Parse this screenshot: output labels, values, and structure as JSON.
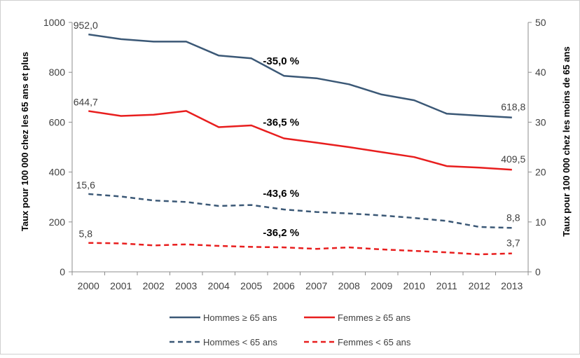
{
  "chart_data": {
    "type": "line",
    "x": [
      "2000",
      "2001",
      "2002",
      "2003",
      "2004",
      "2005",
      "2006",
      "2007",
      "2008",
      "2009",
      "2010",
      "2011",
      "2012",
      "2013"
    ],
    "ylabel": "Taux pour 100 000 chez les 65 ans et plus",
    "ylabel_right": "Taux pour 100 000 chez les moins de 65 ans",
    "ylim": [
      0,
      1000
    ],
    "ylim_right": [
      0,
      50
    ],
    "yticks": [
      "0",
      "200",
      "400",
      "600",
      "800",
      "1000"
    ],
    "yticks_right": [
      "0",
      "10",
      "20",
      "30",
      "40",
      "50"
    ],
    "grid": false,
    "legend_position": "bottom",
    "series": [
      {
        "name": "Hommes ≥ 65 ans",
        "axis": "left",
        "color": "#3b5876",
        "dash": "solid",
        "values": [
          952.0,
          933,
          923,
          923,
          867,
          856,
          786,
          776,
          752,
          711,
          688,
          634,
          626,
          618.8
        ],
        "start_label": "952,0",
        "end_label": "618,8",
        "change_label": "-35,0 %"
      },
      {
        "name": "Femmes ≥ 65 ans",
        "axis": "left",
        "color": "#e81e1e",
        "dash": "solid",
        "values": [
          644.7,
          625,
          630,
          645,
          580,
          587,
          535,
          518,
          500,
          480,
          460,
          424,
          418,
          409.5
        ],
        "start_label": "644,7",
        "end_label": "409,5",
        "change_label": "-36,5 %"
      },
      {
        "name": "Hommes < 65 ans",
        "axis": "right",
        "color": "#3b5876",
        "dash": "dashed",
        "values": [
          15.6,
          15.1,
          14.3,
          14.0,
          13.2,
          13.4,
          12.5,
          12.0,
          11.7,
          11.3,
          10.8,
          10.2,
          9.0,
          8.8
        ],
        "start_label": "15,6",
        "end_label": "8,8",
        "change_label": "-43,6 %"
      },
      {
        "name": "Femmes < 65 ans",
        "axis": "right",
        "color": "#e81e1e",
        "dash": "dashed",
        "values": [
          5.8,
          5.7,
          5.3,
          5.5,
          5.2,
          5.0,
          4.9,
          4.6,
          4.9,
          4.5,
          4.2,
          3.9,
          3.5,
          3.7
        ],
        "start_label": "5,8",
        "end_label": "3,7",
        "change_label": "-36,2 %"
      }
    ]
  }
}
